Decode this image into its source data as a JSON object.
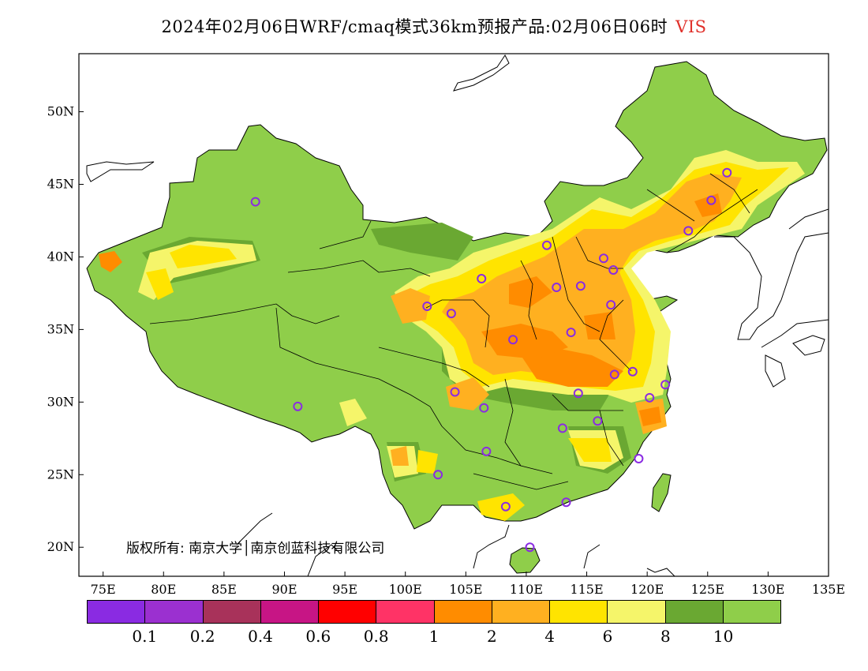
{
  "title": {
    "main": "2024年02月06日WRF/cmaq模式36km预报产品:02月06日06时",
    "variable": "VIS"
  },
  "axes": {
    "lon_ticks": [
      "75E",
      "80E",
      "85E",
      "90E",
      "95E",
      "100E",
      "105E",
      "110E",
      "115E",
      "120E",
      "125E",
      "130E",
      "135E"
    ],
    "lat_ticks": [
      "50N",
      "45N",
      "40N",
      "35N",
      "30N",
      "25N",
      "20N"
    ],
    "lon_range": [
      73,
      135
    ],
    "lat_range": [
      18,
      54
    ]
  },
  "copyright": "版权所有: 南京大学│南京创蓝科技有限公司",
  "legend": {
    "colors": [
      "#8a2be2",
      "#9b30d0",
      "#a8325a",
      "#c71585",
      "#ff0000",
      "#ff3366",
      "#ff8c00",
      "#ffb020",
      "#ffe400",
      "#f5f56a",
      "#6aa832",
      "#8fce4a"
    ],
    "ticks": [
      "0.1",
      "0.2",
      "0.4",
      "0.6",
      "0.8",
      "1",
      "2",
      "4",
      "6",
      "8",
      "10"
    ]
  },
  "map_colors": {
    "vis_gt10": "#8fce4a",
    "vis_8_10": "#6aa832",
    "vis_6_8": "#f5f56a",
    "vis_4_6": "#ffe400",
    "vis_2_4": "#ffb020",
    "vis_1_2": "#ff8c00",
    "station": "#8a2be2"
  },
  "stations": [
    {
      "lon": 87.6,
      "lat": 43.8
    },
    {
      "lon": 91.1,
      "lat": 29.7
    },
    {
      "lon": 101.8,
      "lat": 36.6
    },
    {
      "lon": 103.8,
      "lat": 36.1
    },
    {
      "lon": 106.3,
      "lat": 38.5
    },
    {
      "lon": 111.7,
      "lat": 40.8
    },
    {
      "lon": 112.5,
      "lat": 37.9
    },
    {
      "lon": 114.5,
      "lat": 38.0
    },
    {
      "lon": 116.4,
      "lat": 39.9
    },
    {
      "lon": 117.2,
      "lat": 39.1
    },
    {
      "lon": 117.0,
      "lat": 36.7
    },
    {
      "lon": 113.7,
      "lat": 34.8
    },
    {
      "lon": 108.9,
      "lat": 34.3
    },
    {
      "lon": 104.1,
      "lat": 30.7
    },
    {
      "lon": 106.5,
      "lat": 29.6
    },
    {
      "lon": 114.3,
      "lat": 30.6
    },
    {
      "lon": 117.3,
      "lat": 31.9
    },
    {
      "lon": 118.8,
      "lat": 32.1
    },
    {
      "lon": 121.5,
      "lat": 31.2
    },
    {
      "lon": 120.2,
      "lat": 30.3
    },
    {
      "lon": 115.9,
      "lat": 28.7
    },
    {
      "lon": 113.0,
      "lat": 28.2
    },
    {
      "lon": 106.7,
      "lat": 26.6
    },
    {
      "lon": 102.7,
      "lat": 25.0
    },
    {
      "lon": 108.3,
      "lat": 22.8
    },
    {
      "lon": 113.3,
      "lat": 23.1
    },
    {
      "lon": 119.3,
      "lat": 26.1
    },
    {
      "lon": 110.3,
      "lat": 20.0
    },
    {
      "lon": 123.4,
      "lat": 41.8
    },
    {
      "lon": 125.3,
      "lat": 43.9
    },
    {
      "lon": 126.6,
      "lat": 45.8
    }
  ]
}
